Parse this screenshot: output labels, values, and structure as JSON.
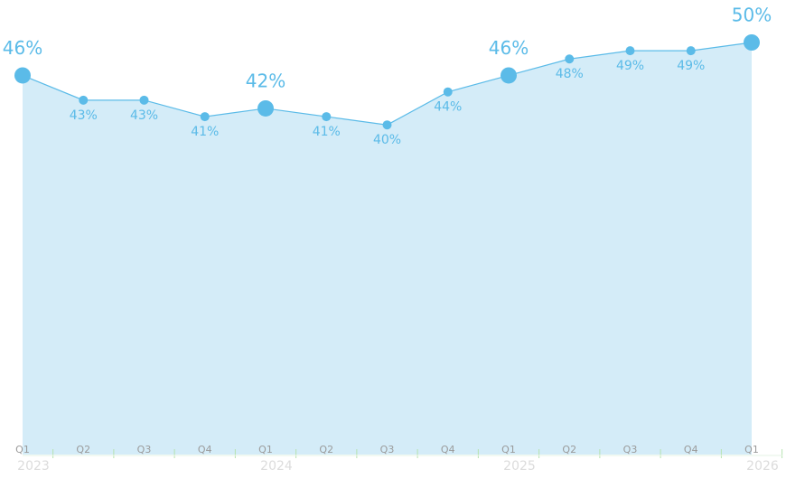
{
  "chart_data": {
    "type": "area",
    "categories": [
      "Q1",
      "Q2",
      "Q3",
      "Q4",
      "Q1",
      "Q2",
      "Q3",
      "Q4",
      "Q1",
      "Q2",
      "Q3",
      "Q4",
      "Q1"
    ],
    "years": [
      "2023",
      "2024",
      "2025",
      "2026"
    ],
    "values": [
      46,
      43,
      43,
      41,
      42,
      41,
      40,
      44,
      46,
      48,
      49,
      49,
      50
    ],
    "value_labels": [
      "46%",
      "43%",
      "43%",
      "41%",
      "42%",
      "41%",
      "40%",
      "44%",
      "46%",
      "48%",
      "49%",
      "49%",
      "50%"
    ],
    "color": "#5bbbe8",
    "fill": "#d4ecf8",
    "ylim": [
      0,
      50
    ]
  }
}
